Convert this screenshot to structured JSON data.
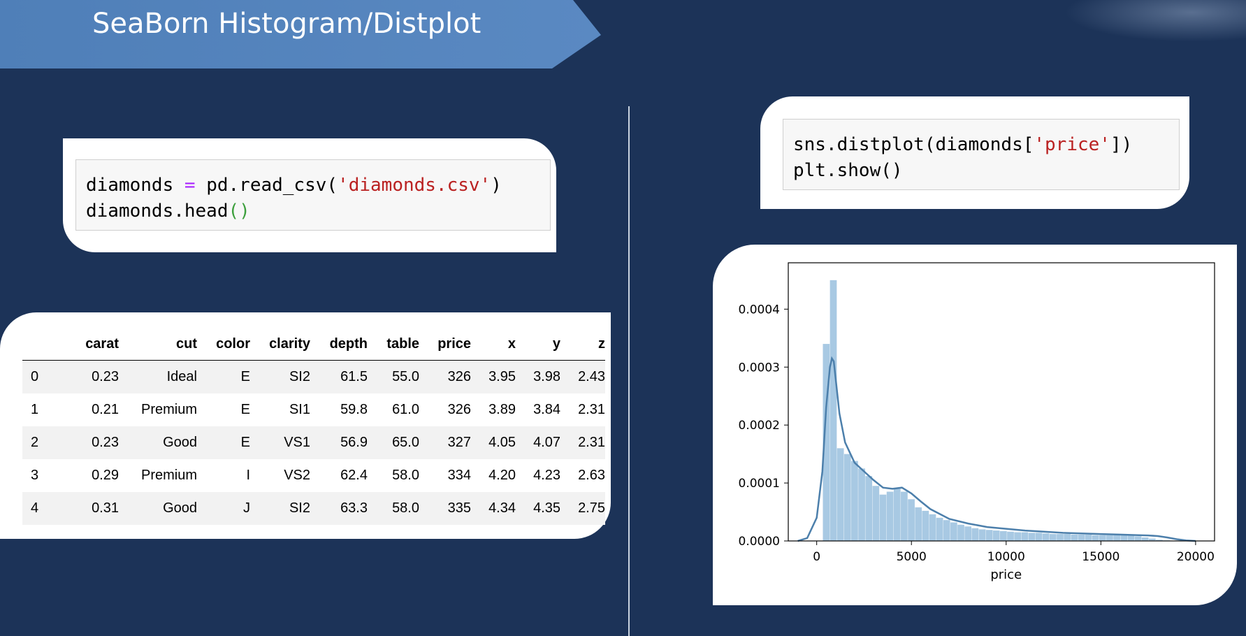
{
  "slide": {
    "title": "SeaBorn Histogram/Distplot"
  },
  "code_left": {
    "line1": {
      "var": "diamonds",
      "op": "=",
      "call": "pd.read_csv(",
      "str": "'diamonds.csv'",
      "close": ")"
    },
    "line2": {
      "call": "diamonds.head",
      "parens": "()"
    }
  },
  "code_right": {
    "line1": {
      "call": "sns.distplot(diamonds[",
      "str": "'price'",
      "close": "])"
    },
    "line2": "plt.show()"
  },
  "dataframe": {
    "columns": [
      "",
      "carat",
      "cut",
      "color",
      "clarity",
      "depth",
      "table",
      "price",
      "x",
      "y",
      "z"
    ],
    "rows": [
      [
        "0",
        "0.23",
        "Ideal",
        "E",
        "SI2",
        "61.5",
        "55.0",
        "326",
        "3.95",
        "3.98",
        "2.43"
      ],
      [
        "1",
        "0.21",
        "Premium",
        "E",
        "SI1",
        "59.8",
        "61.0",
        "326",
        "3.89",
        "3.84",
        "2.31"
      ],
      [
        "2",
        "0.23",
        "Good",
        "E",
        "VS1",
        "56.9",
        "65.0",
        "327",
        "4.05",
        "4.07",
        "2.31"
      ],
      [
        "3",
        "0.29",
        "Premium",
        "I",
        "VS2",
        "62.4",
        "58.0",
        "334",
        "4.20",
        "4.23",
        "2.63"
      ],
      [
        "4",
        "0.31",
        "Good",
        "J",
        "SI2",
        "63.3",
        "58.0",
        "335",
        "4.34",
        "4.35",
        "2.75"
      ]
    ]
  },
  "chart_data": {
    "type": "bar",
    "title": "",
    "xlabel": "price",
    "ylabel": "",
    "xlim": [
      -1500,
      21000
    ],
    "ylim": [
      0,
      0.00048
    ],
    "xticks": [
      0,
      5000,
      10000,
      15000,
      20000
    ],
    "xtick_labels": [
      "0",
      "5000",
      "10000",
      "15000",
      "20000"
    ],
    "yticks": [
      0,
      0.0001,
      0.0002,
      0.0003,
      0.0004
    ],
    "ytick_labels": [
      "0.0000",
      "0.0001",
      "0.0002",
      "0.0003",
      "0.0004"
    ],
    "bar_color": "#9fc3e0",
    "kde_color": "#4c7fab",
    "histogram": {
      "bin_edges": [
        326,
        700,
        1074,
        1448,
        1822,
        2196,
        2570,
        2944,
        3318,
        3692,
        4066,
        4440,
        4814,
        5188,
        5562,
        5936,
        6310,
        6684,
        7058,
        7432,
        7806,
        8180,
        8554,
        8928,
        9302,
        9676,
        10050,
        10424,
        10798,
        11172,
        11546,
        11920,
        12294,
        12668,
        13042,
        13416,
        13790,
        14164,
        14538,
        14912,
        15286,
        15660,
        16034,
        16408,
        16782,
        17156,
        17530,
        17904,
        18278,
        18652
      ],
      "density": [
        0.00034,
        0.00045,
        0.00016,
        0.00015,
        0.000138,
        0.000125,
        0.000112,
        9.5e-05,
        8e-05,
        8.5e-05,
        9e-05,
        8.5e-05,
        7.2e-05,
        5.8e-05,
        5.2e-05,
        4.6e-05,
        4e-05,
        3.6e-05,
        3.2e-05,
        2.8e-05,
        2.5e-05,
        2.2e-05,
        2e-05,
        1.9e-05,
        1.8e-05,
        1.7e-05,
        1.6e-05,
        1.5e-05,
        1.5e-05,
        1.4e-05,
        1.4e-05,
        1.3e-05,
        1.2e-05,
        1.2e-05,
        1.2e-05,
        1.1e-05,
        1.1e-05,
        1.1e-05,
        1e-05,
        1e-05,
        1e-05,
        1e-05,
        1e-05,
        9e-06,
        8e-06,
        6e-06,
        4e-06,
        2e-06,
        1e-06
      ]
    },
    "kde": {
      "x": [
        -1000,
        -500,
        0,
        300,
        500,
        700,
        800,
        900,
        1000,
        1200,
        1500,
        2000,
        2500,
        3000,
        3500,
        4000,
        4500,
        5000,
        5500,
        6000,
        7000,
        8000,
        9000,
        10000,
        11000,
        12000,
        13000,
        14000,
        15000,
        16000,
        17000,
        17500,
        18000,
        18500,
        19000,
        19500,
        20000
      ],
      "y": [
        0.0,
        5e-06,
        4e-05,
        0.00012,
        0.00023,
        0.0003,
        0.000315,
        0.00031,
        0.00028,
        0.00022,
        0.00017,
        0.000135,
        0.00012,
        0.000105,
        9.2e-05,
        9e-05,
        9.2e-05,
        8.2e-05,
        6.8e-05,
        5.5e-05,
        3.8e-05,
        3e-05,
        2.4e-05,
        2.1e-05,
        1.8e-05,
        1.6e-05,
        1.4e-05,
        1.3e-05,
        1.2e-05,
        1.1e-05,
        1e-05,
        9.5e-06,
        8.5e-06,
        6e-06,
        3e-06,
        1e-06,
        0.0
      ]
    }
  }
}
